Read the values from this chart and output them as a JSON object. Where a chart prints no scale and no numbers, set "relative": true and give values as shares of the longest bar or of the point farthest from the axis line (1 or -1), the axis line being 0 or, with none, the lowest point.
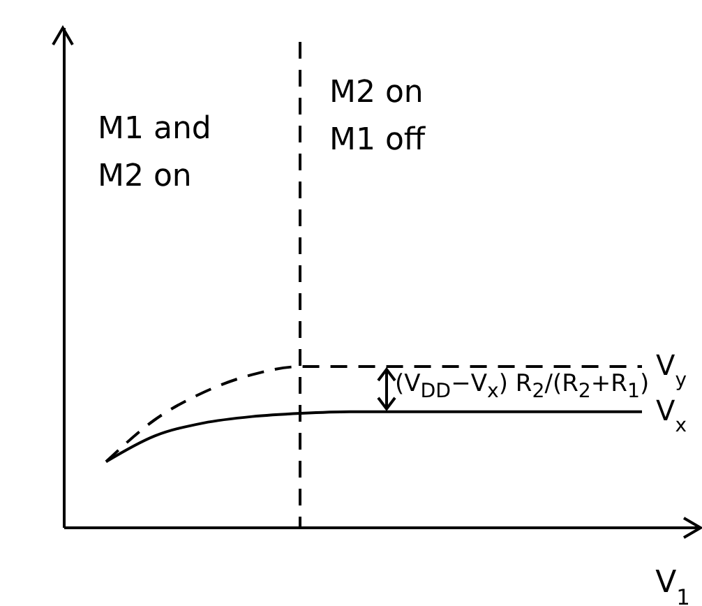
{
  "chart_data": {
    "type": "line",
    "relative": true,
    "xlabel": "V$_{1}$",
    "categories": [
      null,
      null,
      null,
      null,
      null,
      null,
      null,
      null,
      null,
      null,
      null,
      null
    ],
    "series": [
      {
        "name": "V$_{y}$",
        "color": "#000000",
        "line_style": "dashed",
        "values": [
          0.41,
          0.67,
          0.84,
          0.95,
          1,
          1,
          1,
          1,
          1,
          1,
          1,
          1
        ]
      },
      {
        "name": "V$_{x}$",
        "color": "#000000",
        "line_style": "solid",
        "values": [
          0.41,
          0.57,
          0.65,
          0.69,
          0.71,
          0.72,
          0.72,
          0.72,
          0.72,
          0.72,
          0.72,
          0.72
        ]
      }
    ],
    "annotations": [
      "M1 and M2 on",
      "M2 on M1 off",
      "(V$_{DD}$−V$_{x}$) R$_{2}$/(R$_{2}$+R$_{1}$)"
    ],
    "grid": false,
    "legend": false
  }
}
